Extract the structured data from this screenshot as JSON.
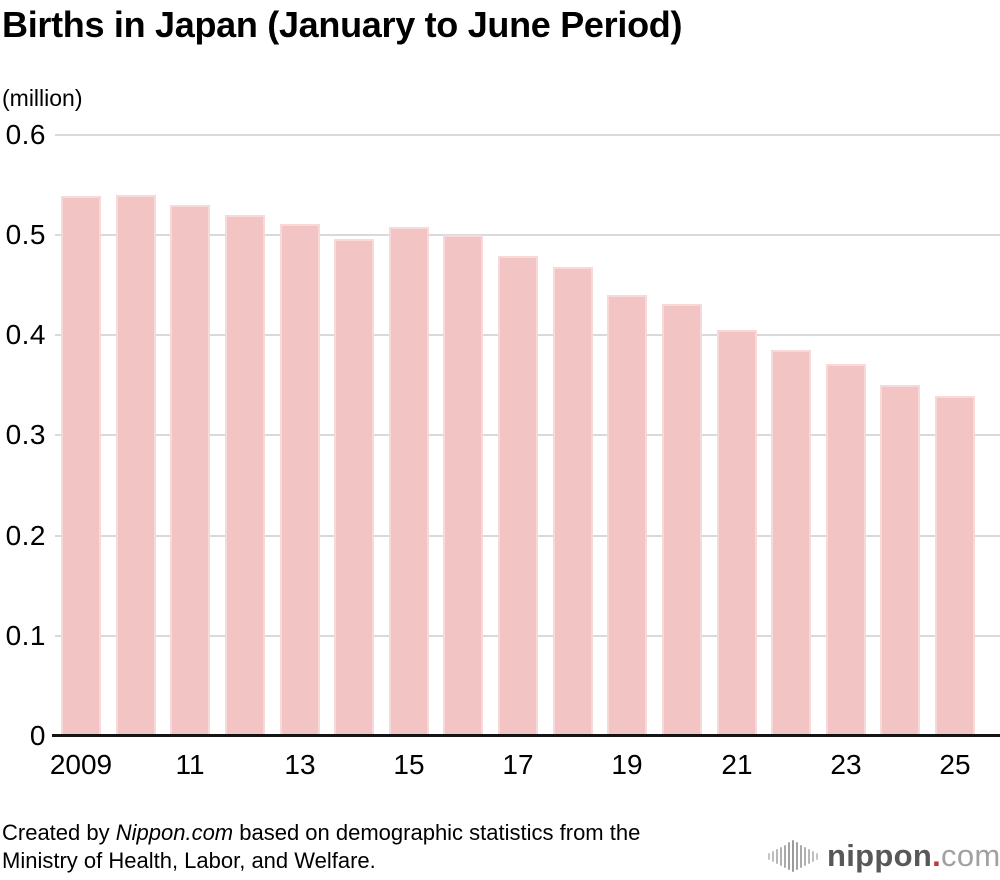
{
  "chart_data": {
    "type": "bar",
    "title": "Births in Japan (January to June Period)",
    "unit_label": "(million)",
    "xlabel": "",
    "ylabel": "(million)",
    "ylim": [
      0,
      0.6
    ],
    "ytick_interval": 0.1,
    "grid": true,
    "legend": "none",
    "bar_color": "#f2c4c4",
    "categories": [
      "2009",
      "2010",
      "2011",
      "2012",
      "2013",
      "2014",
      "2015",
      "2016",
      "2017",
      "2018",
      "2019",
      "2020",
      "2021",
      "2022",
      "2023",
      "2024",
      "2025"
    ],
    "values": [
      0.539,
      0.54,
      0.53,
      0.52,
      0.511,
      0.496,
      0.508,
      0.5,
      0.479,
      0.468,
      0.44,
      0.431,
      0.405,
      0.385,
      0.371,
      0.35,
      0.339
    ]
  },
  "y_axis": {
    "tick_labels": [
      "0.6",
      "0.5",
      "0.4",
      "0.3",
      "0.2",
      "0.1",
      "0"
    ]
  },
  "x_axis": {
    "tick_labels": [
      "2009",
      "11",
      "13",
      "15",
      "17",
      "19",
      "21",
      "23",
      "25"
    ],
    "tick_every_n_bars": 2
  },
  "footer": {
    "credit": {
      "line1_pre": "Created by ",
      "line1_source": "Nippon.com",
      "line1_post": " based on demographic statistics from the",
      "line2": "Ministry of Health, Labor, and Welfare."
    },
    "logo": {
      "brand": "nippon",
      "dot": ".",
      "tld": "com",
      "icon": "waveform-bars-icon",
      "icon_bar_heights": [
        7,
        11,
        15,
        19,
        23,
        28,
        32,
        28,
        23,
        19,
        15,
        11,
        7
      ]
    }
  },
  "colors": {
    "bar": "#f2c4c4",
    "bar_edge": "#f7d9d9",
    "gridline": "#d9d9d9",
    "axis": "#141414",
    "logo_dark": "#595757",
    "logo_light": "#a1a1a1",
    "logo_dot": "#c0393b",
    "logo_icon": "#9b9b9b"
  }
}
